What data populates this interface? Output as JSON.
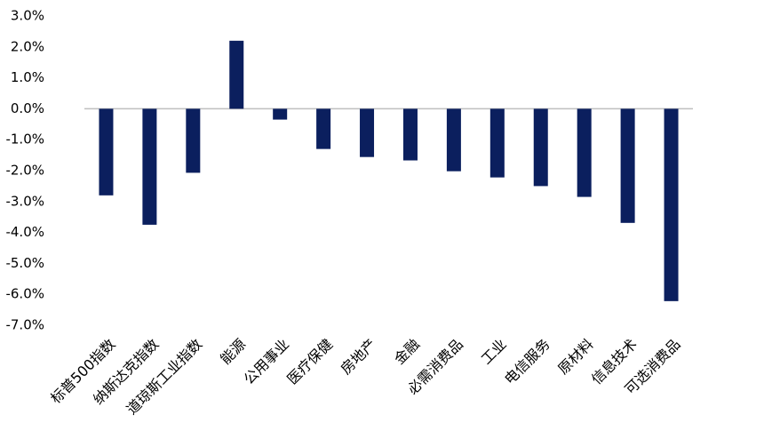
{
  "chart_data": {
    "type": "bar",
    "categories": [
      "标普500指数",
      "纳斯达克指数",
      "道琼斯工业指数",
      "能源",
      "公用事业",
      "医疗保健",
      "房地产",
      "金融",
      "必需消费品",
      "工业",
      "电信服务",
      "原材料",
      "信息技术",
      "可选消费品"
    ],
    "values": [
      -2.8,
      -3.75,
      -2.07,
      2.2,
      -0.35,
      -1.3,
      -1.56,
      -1.67,
      -2.02,
      -2.22,
      -2.5,
      -2.85,
      -3.69,
      -6.22
    ],
    "color": "#0b1f5e",
    "ylim": [
      -7,
      3
    ],
    "yticks": [
      {
        "value": 3,
        "label": "3.0%"
      },
      {
        "value": 2,
        "label": "2.0%"
      },
      {
        "value": 1,
        "label": "1.0%"
      },
      {
        "value": 0,
        "label": "0.0%"
      },
      {
        "value": -1,
        "label": "-1.0%"
      },
      {
        "value": -2,
        "label": "-2.0%"
      },
      {
        "value": -3,
        "label": "-3.0%"
      },
      {
        "value": -4,
        "label": "-4.0%"
      },
      {
        "value": -5,
        "label": "-5.0%"
      },
      {
        "value": -6,
        "label": "-6.0%"
      },
      {
        "value": -7,
        "label": "-7.0%"
      }
    ],
    "grid": false
  }
}
